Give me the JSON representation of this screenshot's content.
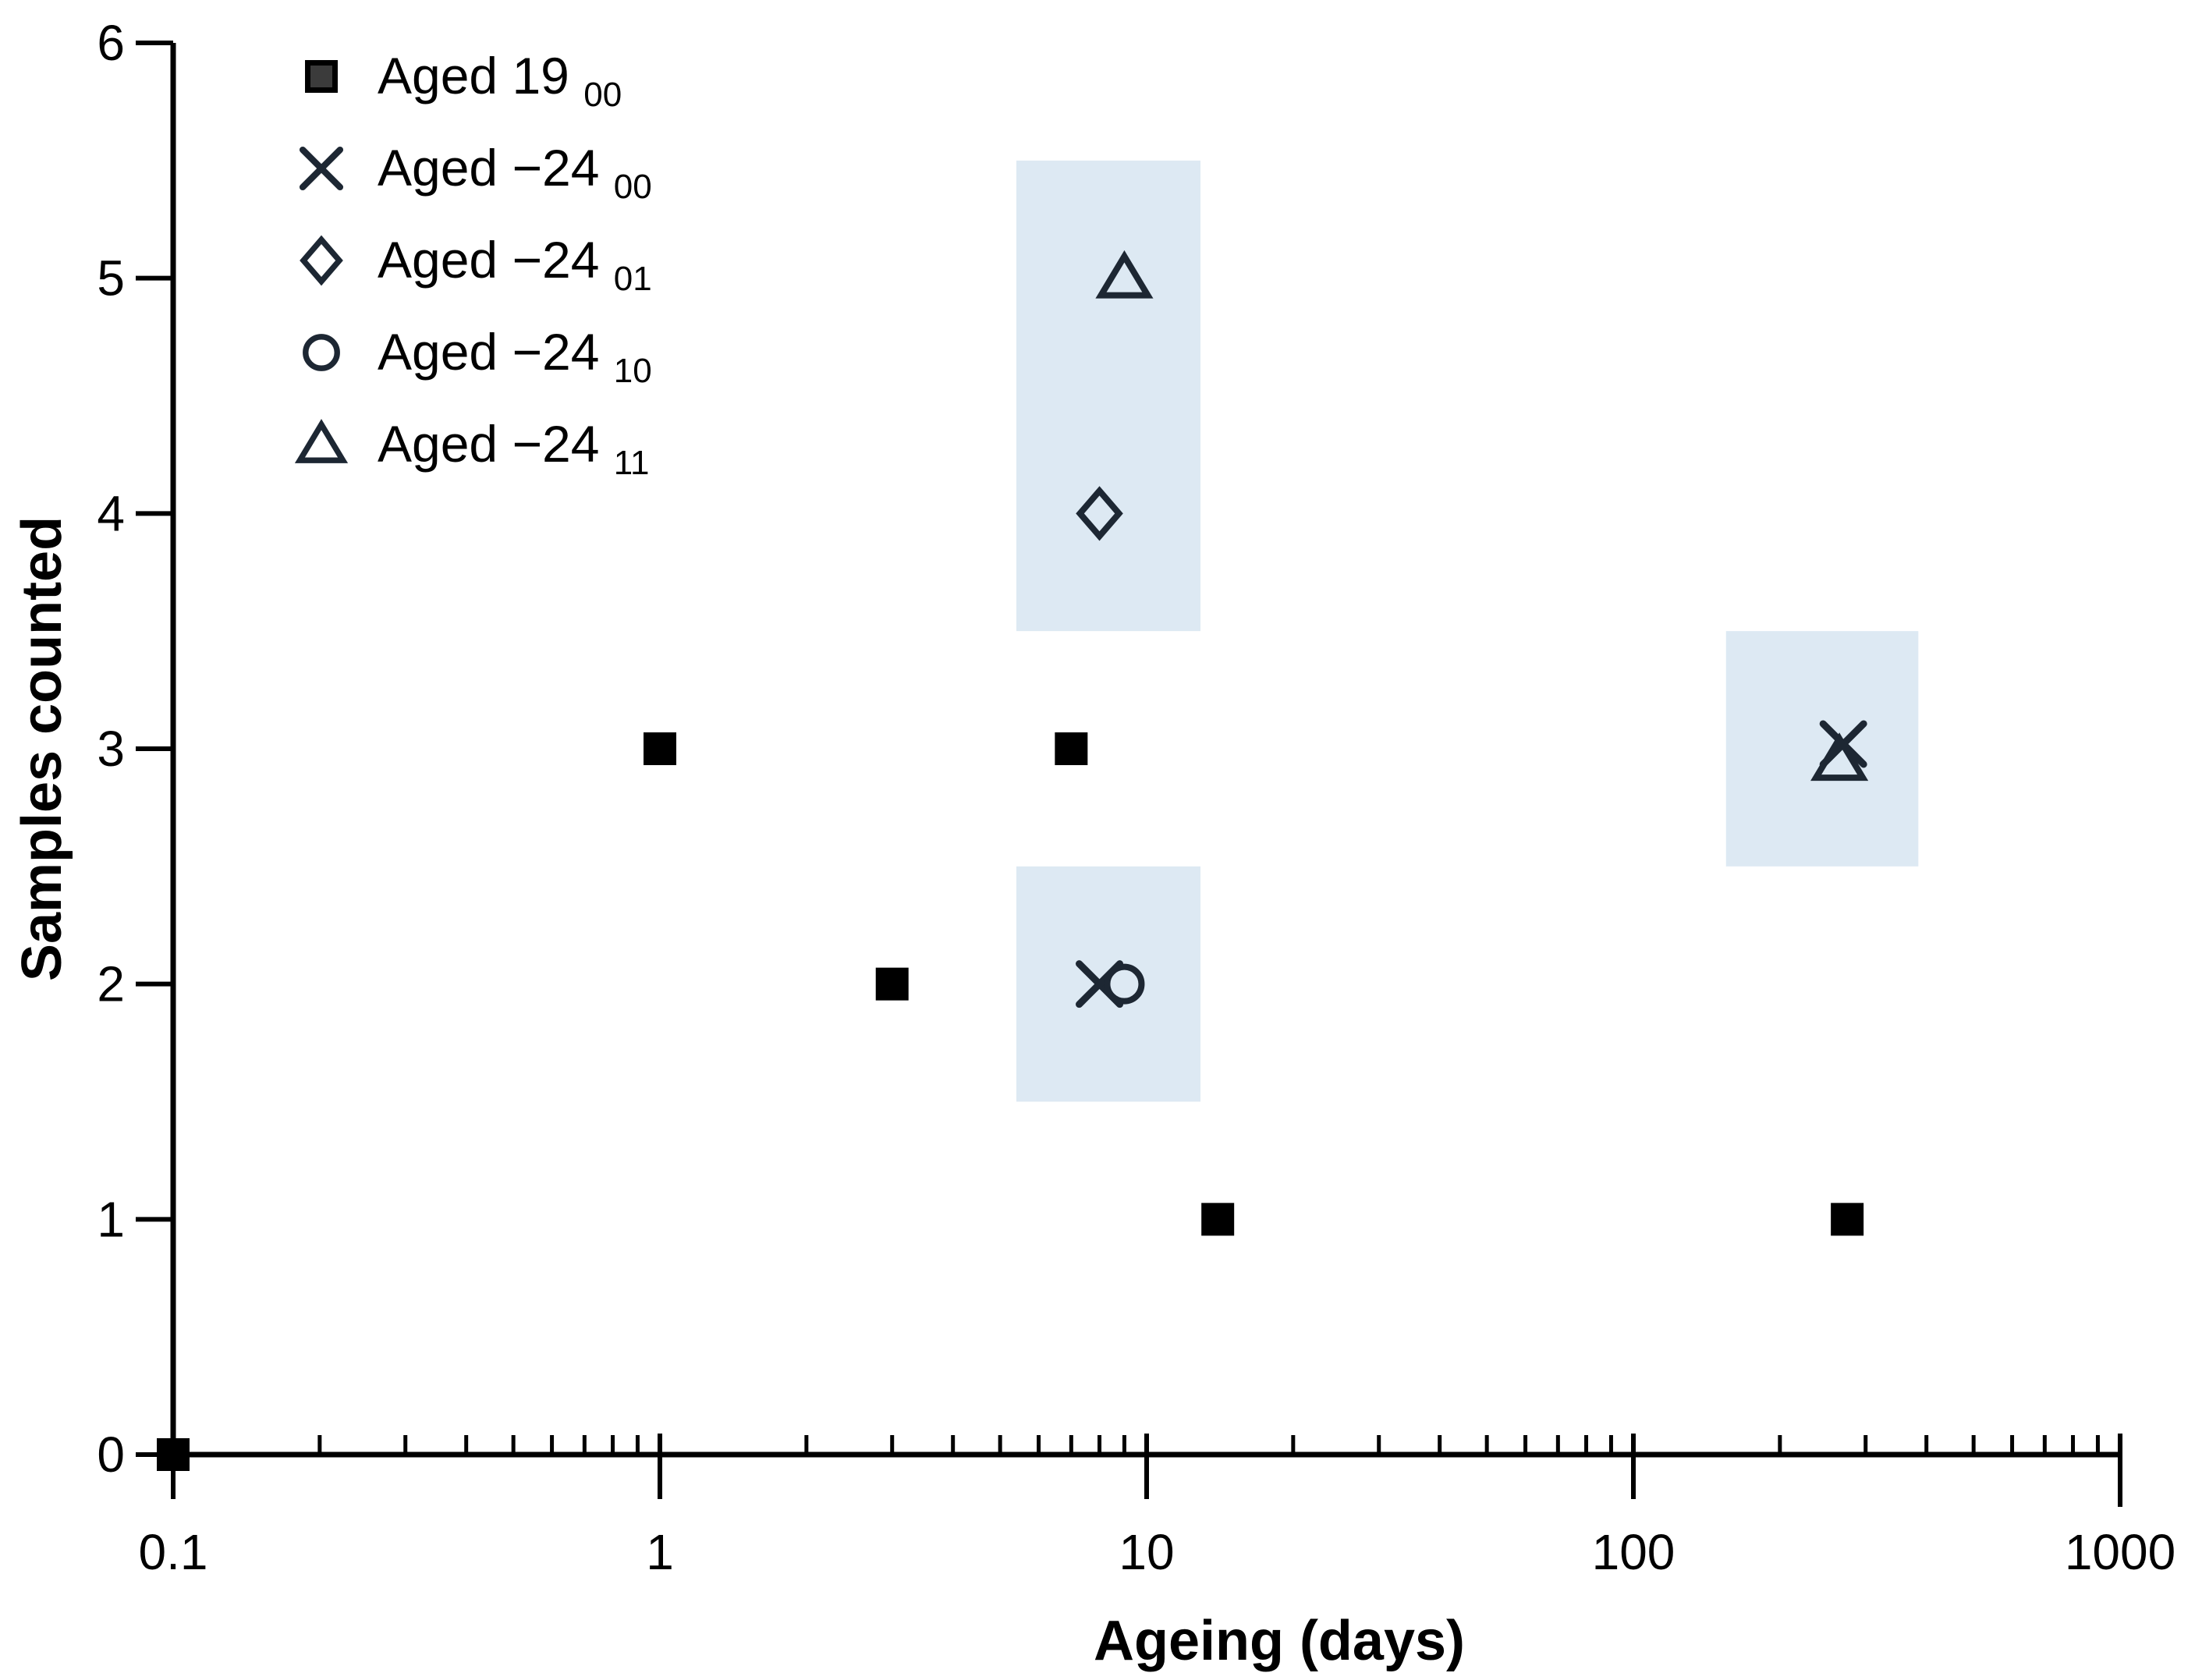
{
  "chart_data": {
    "type": "scatter",
    "title": "",
    "xlabel": "Ageing (days)",
    "ylabel": "Samples counted",
    "x_scale": "log",
    "x_range": [
      0.1,
      1000
    ],
    "x_ticks": [
      0.1,
      1,
      10,
      100,
      1000
    ],
    "x_tick_labels": [
      "0.1",
      "1",
      "10",
      "100",
      "1000"
    ],
    "y_range": [
      0,
      6
    ],
    "y_ticks": [
      0,
      1,
      2,
      3,
      4,
      5,
      6
    ],
    "grid": "off",
    "legend_position": "top-left-inside",
    "background_color": "#ffffff",
    "axis_color": "#000000",
    "highlight_color": "#dde9f3",
    "marker_dark_color": "#1d2733",
    "legend_square_fill": "#3b3b3b",
    "series": [
      {
        "name": "Aged 19",
        "name_sub": "00",
        "marker": "square-filled",
        "color": "#000000",
        "points": [
          [
            0.1,
            0
          ],
          [
            1,
            3
          ],
          [
            3,
            2
          ],
          [
            7,
            3
          ],
          [
            14,
            1
          ],
          [
            275,
            1
          ]
        ]
      },
      {
        "name": "Aged −24",
        "name_sub": "00",
        "marker": "x",
        "color": "#1d2733",
        "points": [
          [
            8,
            2
          ],
          [
            270,
            3.02
          ]
        ]
      },
      {
        "name": "Aged −24",
        "name_sub": "01",
        "marker": "diamond",
        "color": "#1d2733",
        "points": [
          [
            8,
            4
          ]
        ]
      },
      {
        "name": "Aged −24",
        "name_sub": "10",
        "marker": "circle",
        "color": "#1d2733",
        "points": [
          [
            9,
            2
          ]
        ]
      },
      {
        "name": "Aged −24",
        "name_sub": "11",
        "marker": "triangle",
        "color": "#1d2733",
        "points": [
          [
            9,
            5
          ],
          [
            265,
            2.95
          ]
        ]
      }
    ],
    "highlight_boxes": [
      {
        "x1": 5.4,
        "x2": 12.9,
        "y1": 3.5,
        "y2": 5.5
      },
      {
        "x1": 5.4,
        "x2": 12.9,
        "y1": 1.5,
        "y2": 2.5
      },
      {
        "x1": 155,
        "x2": 385,
        "y1": 2.5,
        "y2": 3.5
      }
    ]
  }
}
